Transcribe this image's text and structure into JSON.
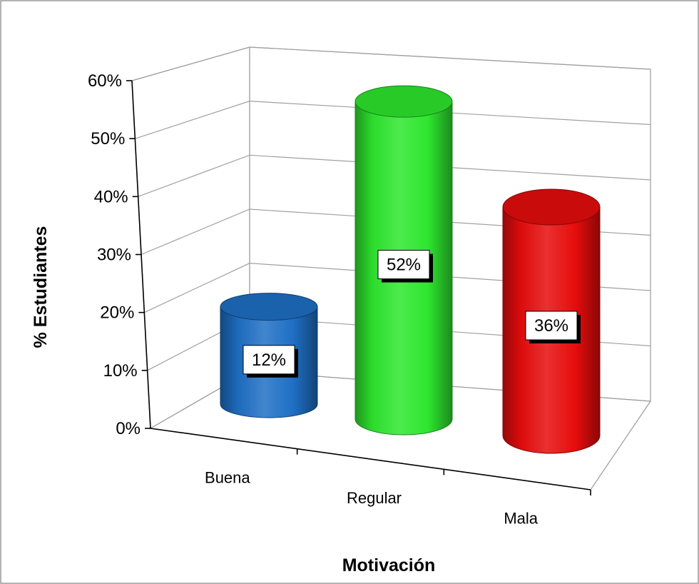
{
  "chart_data": {
    "type": "bar",
    "style": "3d-cylinder",
    "categories": [
      "Buena",
      "Regular",
      "Mala"
    ],
    "values": [
      12,
      52,
      36
    ],
    "data_labels": [
      "12%",
      "52%",
      "36%"
    ],
    "colors": [
      "#1f6fc5",
      "#2ee62e",
      "#e60c0c"
    ],
    "xlabel": "Motivación",
    "ylabel": "% Estudiantes",
    "ylim": [
      0,
      60
    ],
    "yticks": [
      "0%",
      "10%",
      "20%",
      "30%",
      "40%",
      "50%",
      "60%"
    ],
    "grid": true,
    "legend": "none"
  }
}
